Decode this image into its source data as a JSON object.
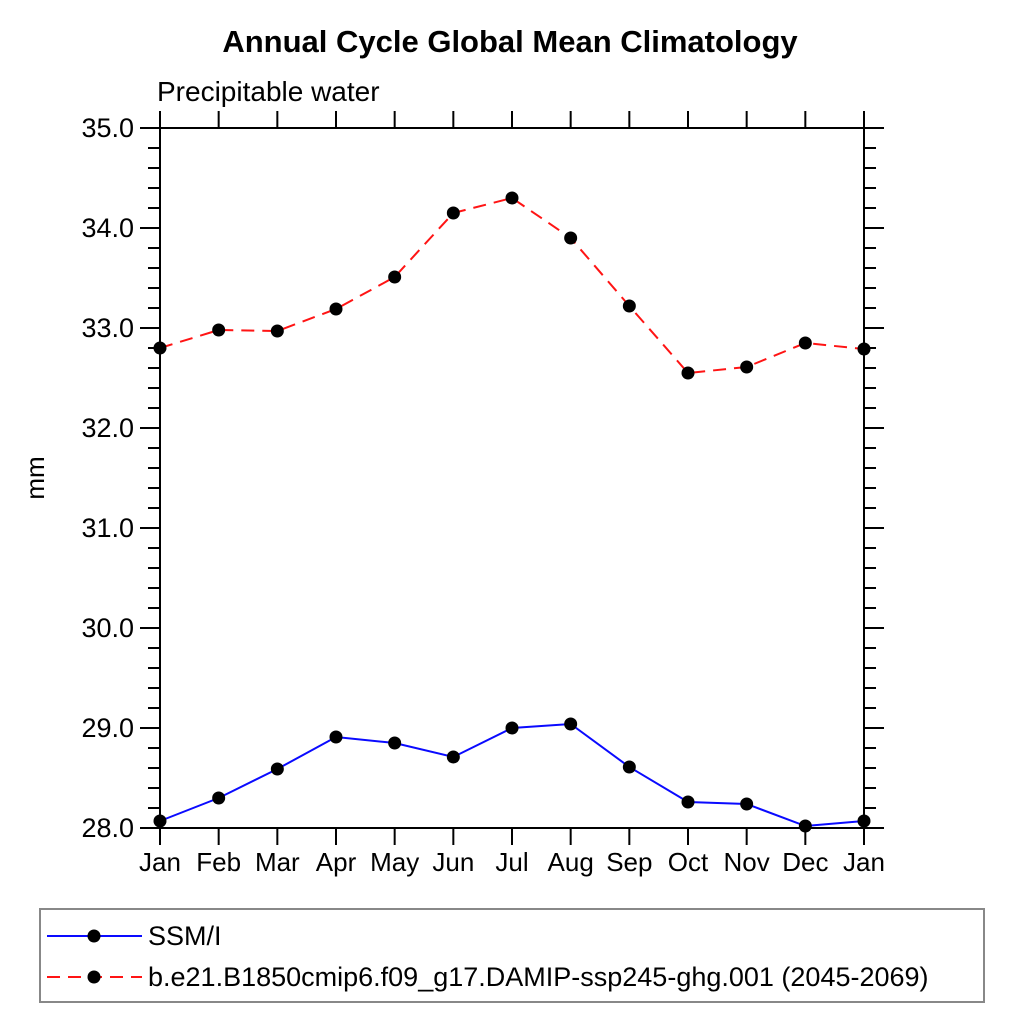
{
  "chart_data": {
    "type": "line",
    "title": "Annual Cycle Global Mean Climatology",
    "subtitle": "Precipitable water",
    "ylabel": "mm",
    "xlabel": "",
    "categories": [
      "Jan",
      "Feb",
      "Mar",
      "Apr",
      "May",
      "Jun",
      "Jul",
      "Aug",
      "Sep",
      "Oct",
      "Nov",
      "Dec",
      "Jan"
    ],
    "ylim": [
      28.0,
      35.0
    ],
    "ytick_values": [
      28,
      29,
      30,
      31,
      32,
      33,
      34,
      35
    ],
    "ytick_labels": [
      "28.0",
      "29.0",
      "30.0",
      "31.0",
      "32.0",
      "33.0",
      "34.0",
      "35.0"
    ],
    "ytick_minor_step": 0.2,
    "grid": false,
    "legend_position": "bottom-box",
    "axis_color": "#000000",
    "marker_color": "#000000",
    "legend_border_color": "#888888",
    "series": [
      {
        "name": "SSM/I",
        "color": "#0a0aff",
        "line_style": "solid",
        "marker": "black-circle",
        "values": [
          28.07,
          28.3,
          28.59,
          28.91,
          28.85,
          28.71,
          29.0,
          29.04,
          28.61,
          28.26,
          28.24,
          28.02,
          28.07
        ]
      },
      {
        "name": "b.e21.B1850cmip6.f09_g17.DAMIP-ssp245-ghg.001 (2045-2069)",
        "color": "#ff1414",
        "line_style": "dashed",
        "marker": "black-circle",
        "values": [
          32.8,
          32.98,
          32.97,
          33.19,
          33.51,
          34.15,
          34.3,
          33.9,
          33.22,
          32.55,
          32.61,
          32.85,
          32.79
        ]
      }
    ]
  }
}
